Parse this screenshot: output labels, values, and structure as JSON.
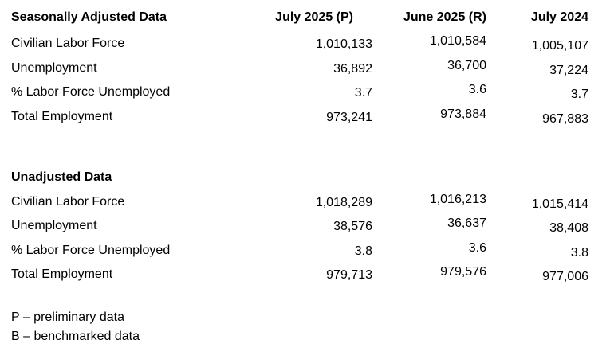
{
  "page": {
    "background": "#ffffff",
    "text_color": "#000000"
  },
  "columns": [
    "July 2025 (P)",
    "June 2025 (R)",
    "July 2024"
  ],
  "sections": [
    {
      "title": "Seasonally Adjusted Data",
      "rows": [
        {
          "label": "Civilian Labor Force",
          "values": [
            "1,010,133",
            "1,010,584",
            "1,005,107"
          ]
        },
        {
          "label": "Unemployment",
          "values": [
            "36,892",
            "36,700",
            "37,224"
          ]
        },
        {
          "label": "% Labor Force Unemployed",
          "values": [
            "3.7",
            "3.6",
            "3.7"
          ]
        },
        {
          "label": "Total Employment",
          "values": [
            "973,241",
            "973,884",
            "967,883"
          ]
        }
      ]
    },
    {
      "title": "Unadjusted Data",
      "rows": [
        {
          "label": "Civilian Labor Force",
          "values": [
            "1,018,289",
            "1,016,213",
            "1,015,414"
          ]
        },
        {
          "label": "Unemployment",
          "values": [
            "38,576",
            "36,637",
            "38,408"
          ]
        },
        {
          "label": "% Labor Force Unemployed",
          "values": [
            "3.8",
            "3.6",
            "3.8"
          ]
        },
        {
          "label": "Total Employment",
          "values": [
            "979,713",
            "979,576",
            "977,006"
          ]
        }
      ]
    }
  ],
  "footnotes": [
    "P – preliminary data",
    "B – benchmarked data"
  ]
}
